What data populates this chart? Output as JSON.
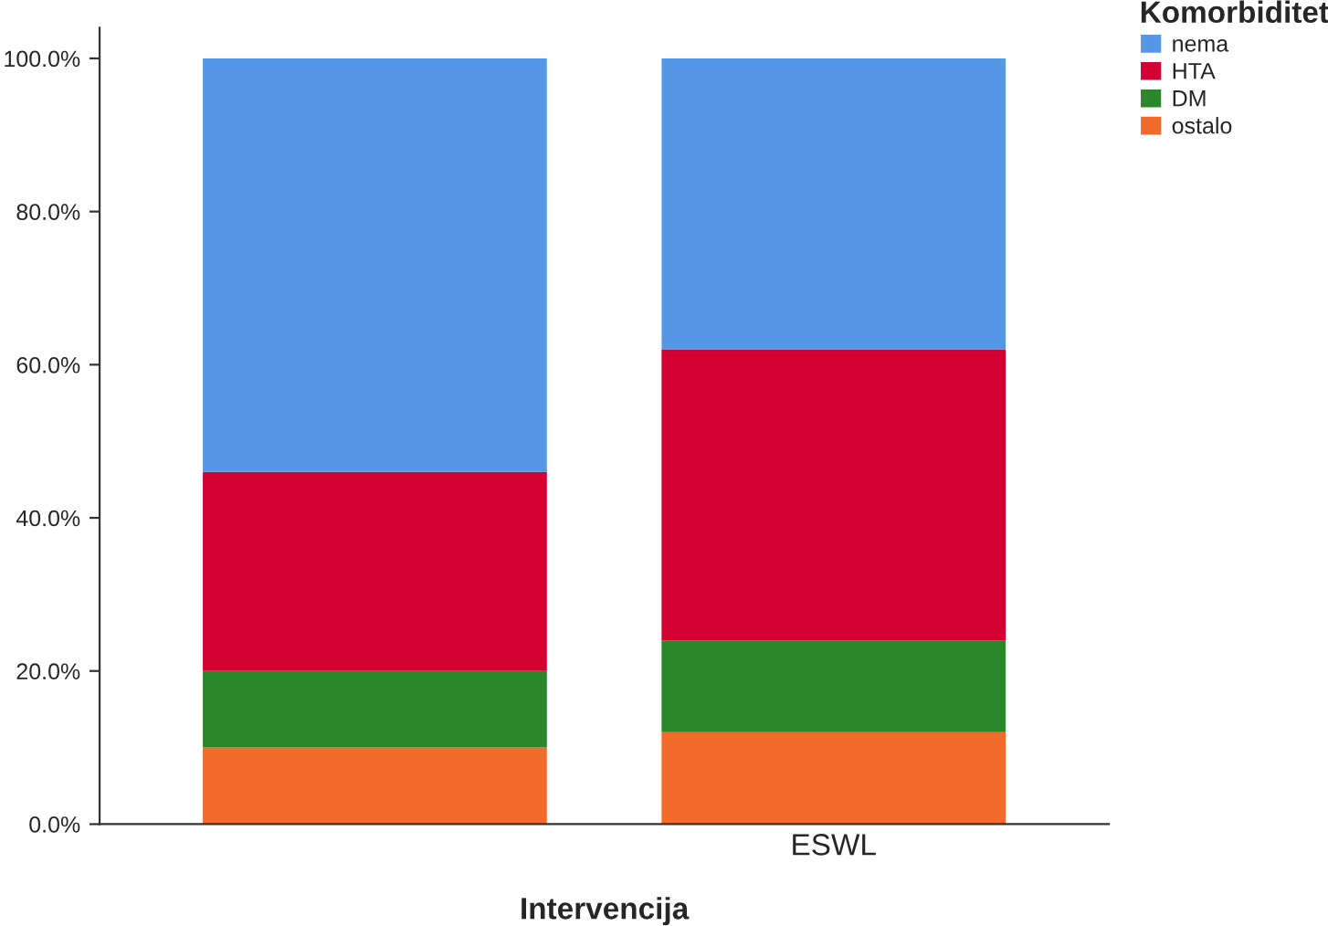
{
  "chart_data": {
    "type": "bar",
    "stacked": true,
    "xlabel": "Intervencija",
    "legend_title": "Komorbiditet",
    "legend": "top right",
    "categories": [
      null,
      "ESWL"
    ],
    "series": [
      {
        "name": "ostalo",
        "color": "#f26b2b",
        "values": [
          10,
          12
        ]
      },
      {
        "name": "DM",
        "color": "#2a882a",
        "values": [
          10,
          12
        ]
      },
      {
        "name": "HTA",
        "color": "#d50032",
        "values": [
          26,
          38
        ]
      },
      {
        "name": "nema",
        "color": "#5599e6",
        "values": [
          54,
          38
        ]
      }
    ],
    "ylim": [
      0,
      104
    ],
    "yticks": [
      {
        "value": 0,
        "label": "0.0%"
      },
      {
        "value": 20,
        "label": "20.0%"
      },
      {
        "value": 40,
        "label": "40.0%"
      },
      {
        "value": 60,
        "label": "60.0%"
      },
      {
        "value": 80,
        "label": "80.0%"
      },
      {
        "value": 100,
        "label": "100.0%"
      }
    ],
    "grid": false
  }
}
